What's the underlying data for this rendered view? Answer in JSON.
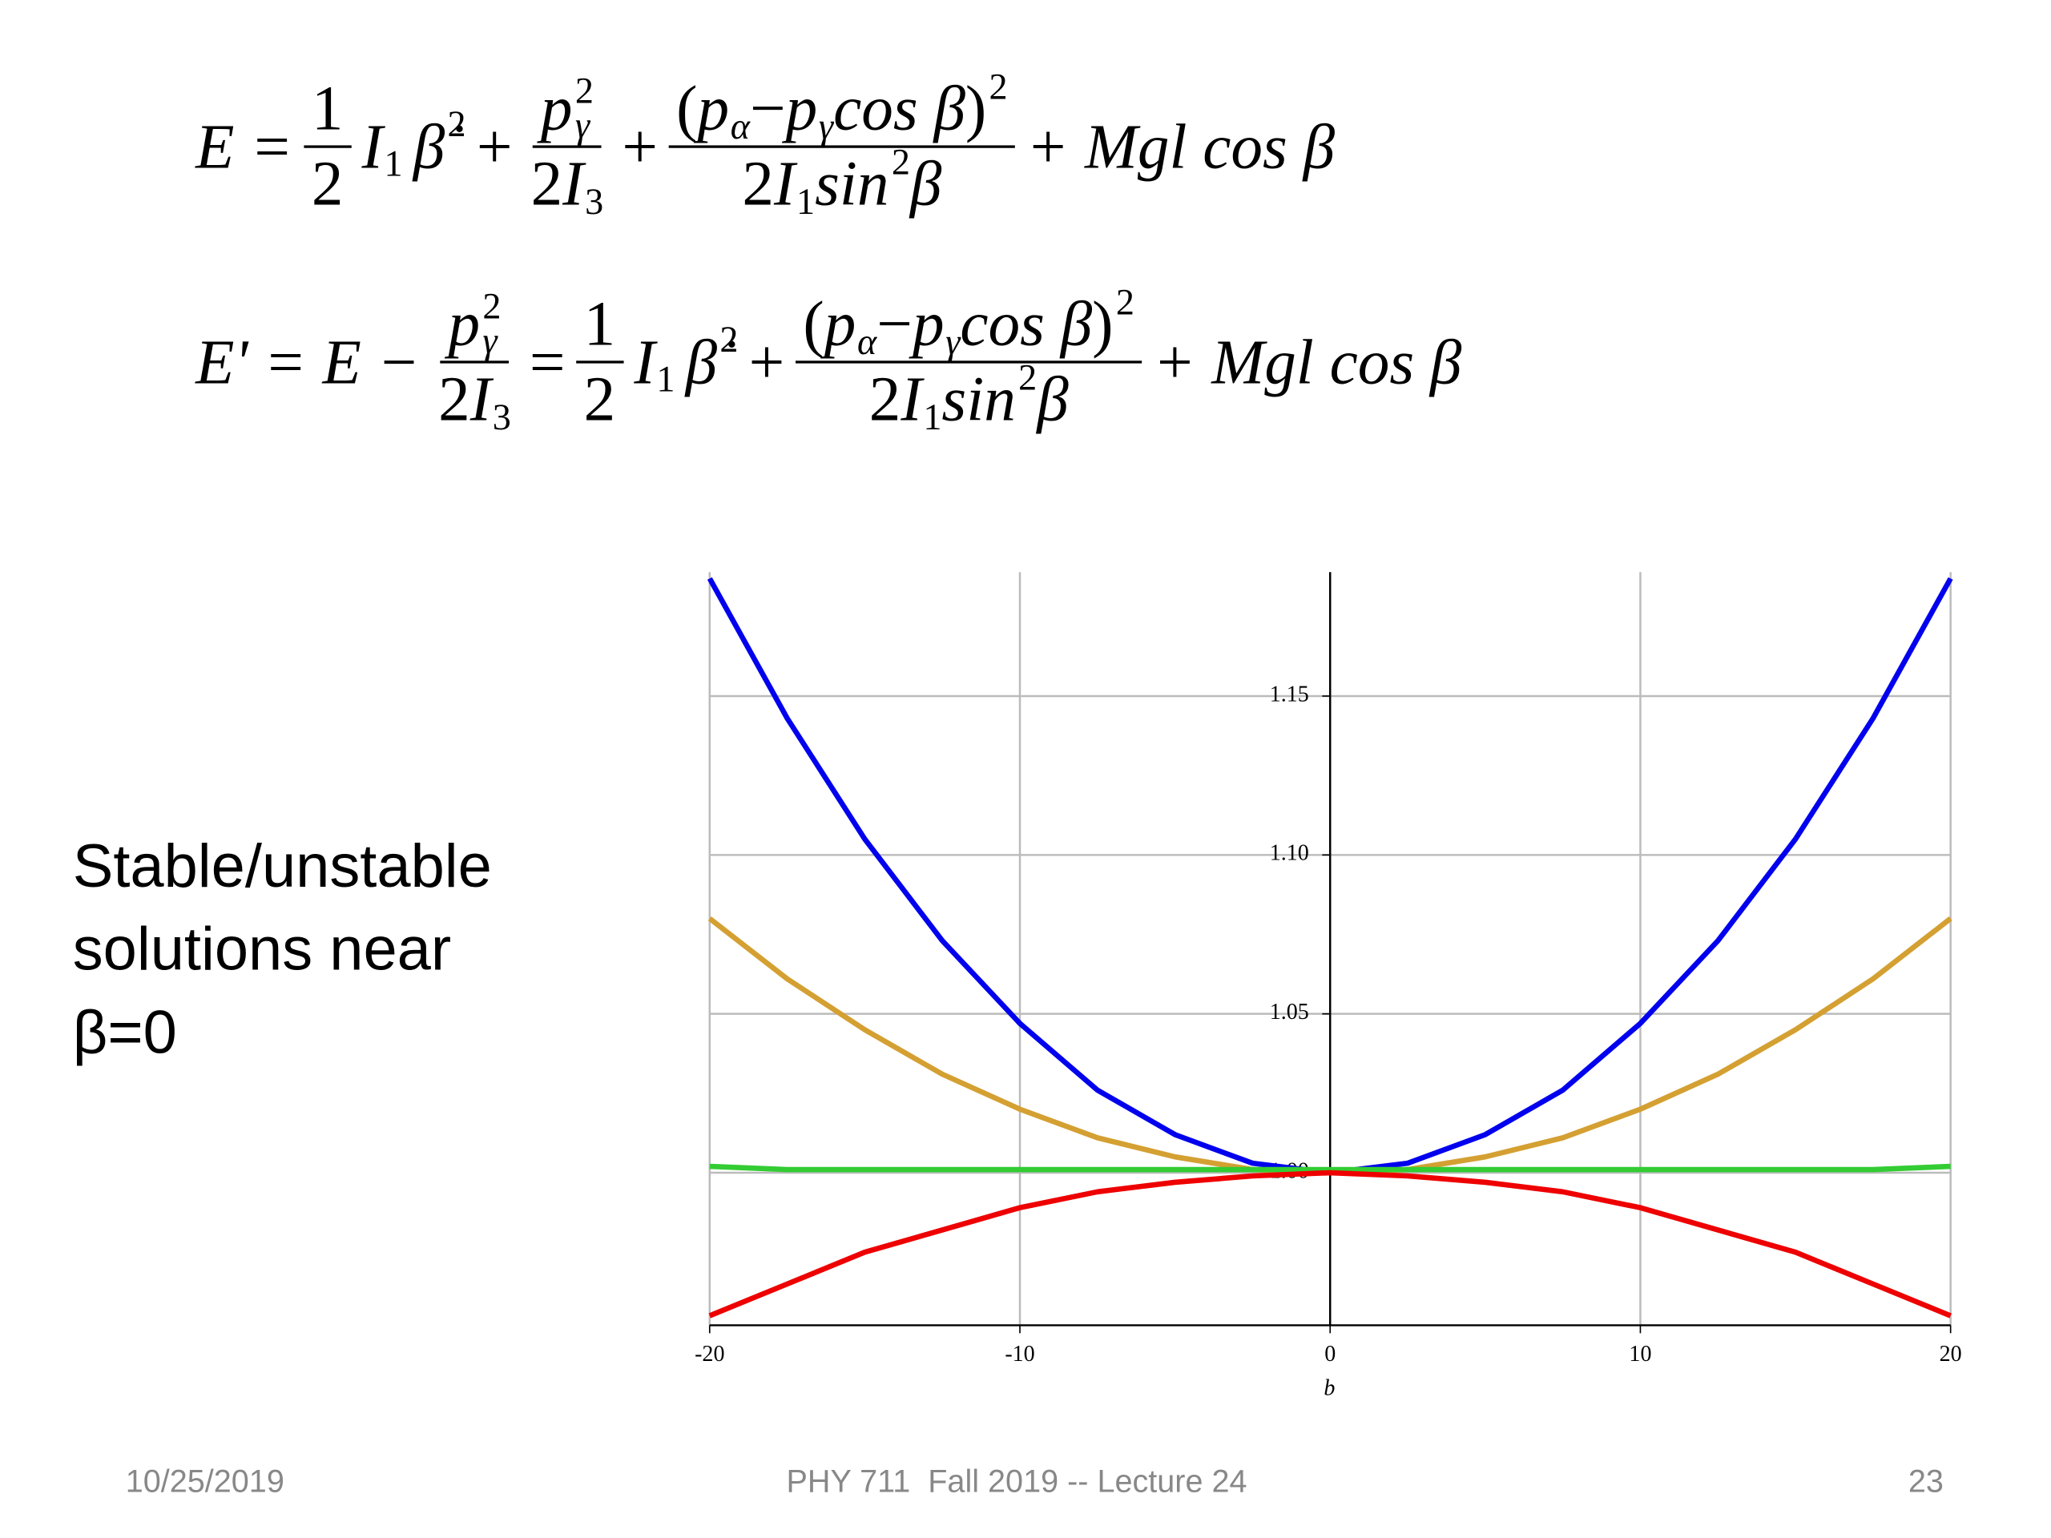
{
  "equations": [
    [
      "E =",
      {
        "num": [
          "1"
        ],
        "den": [
          "2"
        ]
      },
      {
        "b": "I",
        "sub": "1"
      },
      {
        "b": "β̇",
        "sup": "2"
      },
      "+",
      {
        "num": [
          {
            "b": "p",
            "sub": "γ",
            "sup": "2"
          }
        ],
        "den": [
          "2",
          {
            "b": "I",
            "sub": "3"
          }
        ]
      },
      "+",
      {
        "num": [
          "(",
          {
            "b": "p",
            "sub": "α"
          },
          "−",
          {
            "b": "p",
            "sub": "γ"
          },
          "cos β",
          {
            "b": ")",
            "sup": "2"
          }
        ],
        "den": [
          "2",
          {
            "b": "I",
            "sub": "1"
          },
          {
            "b": "sin",
            "sup": "2"
          },
          "β"
        ]
      },
      "+ Mgl cos β"
    ],
    [
      "E' = E −",
      {
        "num": [
          {
            "b": "p",
            "sub": "γ",
            "sup": "2"
          }
        ],
        "den": [
          "2",
          {
            "b": "I",
            "sub": "3"
          }
        ]
      },
      "=",
      {
        "num": [
          "1"
        ],
        "den": [
          "2"
        ]
      },
      {
        "b": "I",
        "sub": "1"
      },
      {
        "b": "β̇",
        "sup": "2"
      },
      "+",
      {
        "num": [
          "(",
          {
            "b": "p",
            "sub": "α"
          },
          "−",
          {
            "b": "p",
            "sub": "γ"
          },
          "cos β",
          {
            "b": ")",
            "sup": "2"
          }
        ],
        "den": [
          "2",
          {
            "b": "I",
            "sub": "1"
          },
          {
            "b": "sin",
            "sup": "2"
          },
          "β"
        ]
      },
      "+ Mgl cos β"
    ]
  ],
  "side_text": [
    "Stable/unstable",
    "solutions near",
    "β=0"
  ],
  "footer": {
    "date": "10/25/2019",
    "course": "PHY 711  Fall 2019 -- Lecture 24",
    "page": "23"
  },
  "chart_data": {
    "type": "line",
    "x_label": "b",
    "x": [
      -20,
      -17.5,
      -15,
      -12.5,
      -10,
      -7.5,
      -5,
      -2.5,
      0,
      2.5,
      5,
      7.5,
      10,
      12.5,
      15,
      17.5,
      20
    ],
    "series": [
      {
        "color": "#0000ee",
        "values": [
          1.187,
          1.143,
          1.105,
          1.073,
          1.047,
          1.026,
          1.012,
          1.003,
          1.0,
          1.003,
          1.012,
          1.026,
          1.047,
          1.073,
          1.105,
          1.143,
          1.187
        ]
      },
      {
        "color": "#d4a032",
        "values": [
          1.08,
          1.061,
          1.045,
          1.031,
          1.02,
          1.011,
          1.005,
          1.001,
          1.0,
          1.001,
          1.005,
          1.011,
          1.02,
          1.031,
          1.045,
          1.061,
          1.08
        ]
      },
      {
        "color": "#33cc33",
        "values": [
          1.002,
          1.001,
          1.001,
          1.001,
          1.001,
          1.001,
          1.001,
          1.001,
          1.001,
          1.001,
          1.001,
          1.001,
          1.001,
          1.001,
          1.001,
          1.001,
          1.002
        ]
      },
      {
        "color": "#ee0000",
        "values": [
          0.955,
          0.965,
          0.975,
          0.982,
          0.989,
          0.994,
          0.997,
          0.999,
          1.0,
          0.999,
          0.997,
          0.994,
          0.989,
          0.982,
          0.975,
          0.965,
          0.955
        ]
      }
    ],
    "xlim": [
      -20,
      20
    ],
    "xticks": [
      -20,
      -10,
      0,
      10,
      20
    ],
    "ylim": [
      0.952,
      1.189
    ],
    "yticks": [
      {
        "value": 1,
        "label": "1.00"
      },
      1.05,
      {
        "value": 1.1,
        "label": "1.10"
      },
      1.15
    ],
    "grid": true
  }
}
